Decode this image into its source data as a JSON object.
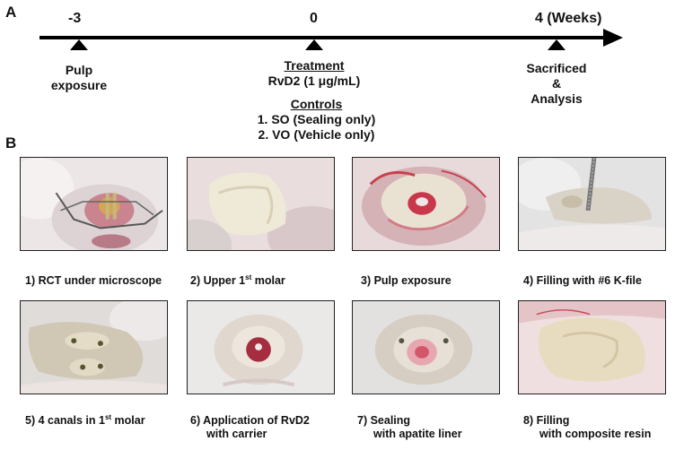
{
  "panel_a": {
    "letter": "A",
    "ticks": [
      {
        "label": "-3",
        "above": "",
        "below_lines": [
          "Pulp",
          "exposure"
        ]
      },
      {
        "label": "0",
        "above": "",
        "below_lines": []
      },
      {
        "label": "4",
        "above": "(Weeks)",
        "below_lines": [
          "Sacrificed",
          "&",
          "Analysis"
        ]
      }
    ],
    "treatment_title": "Treatment",
    "treatment_value": "RvD2 (1 μg/mL)",
    "controls_title": "Controls",
    "controls_items": [
      "1. SO (Sealing only)",
      "2. VO (Vehicle only)"
    ]
  },
  "panel_b": {
    "letter": "B",
    "captions": [
      {
        "pre": "1) RCT under microscope",
        "sup": "",
        "post": "",
        "line2": ""
      },
      {
        "pre": "2) Upper 1",
        "sup": "st",
        "post": " molar",
        "line2": ""
      },
      {
        "pre": "3) Pulp exposure",
        "sup": "",
        "post": "",
        "line2": ""
      },
      {
        "pre": "4) Filling with #6 K-file",
        "sup": "",
        "post": "",
        "line2": ""
      },
      {
        "pre": "5) 4 canals in 1",
        "sup": "st",
        "post": " molar",
        "line2": ""
      },
      {
        "pre": "6) Application of RvD2",
        "sup": "",
        "post": "",
        "line2": "with carrier"
      },
      {
        "pre": "7) Sealing",
        "sup": "",
        "post": "",
        "line2": "with apatite liner"
      },
      {
        "pre": "8) Filling",
        "sup": "",
        "post": "",
        "line2": "with composite resin"
      }
    ]
  }
}
